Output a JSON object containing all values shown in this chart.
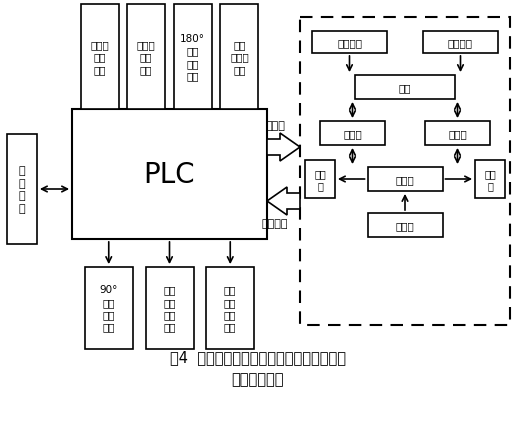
{
  "title_line1": "图4  包装袋折边折角作业机械手控制系统的",
  "title_line2": "总体设计方案",
  "bg_color": "#ffffff",
  "plc_label": "PLC",
  "hmi_label": "人\n机\n界\n面",
  "top_boxes": [
    "上吸盘\n气缸\n控制",
    "下齿耙\n气缸\n控制",
    "180°\n摆动\n气缸\n控制",
    "真空\n发生器\n控制"
  ],
  "bottom_boxes": [
    "90°\n摆动\n气缸\n控制",
    "纵向\n移动\n气缸\n控制",
    "横向\n移动\n气缸\n控制"
  ],
  "right_label_top": "电磁阀",
  "right_label_bottom": "磁性开关",
  "ms_label": "磁性开关",
  "qg_label": "气缸",
  "jl_label": "节流阀",
  "em_label": "电磁阀",
  "cs_label": "消音\n器",
  "jy_label": "减压阀"
}
